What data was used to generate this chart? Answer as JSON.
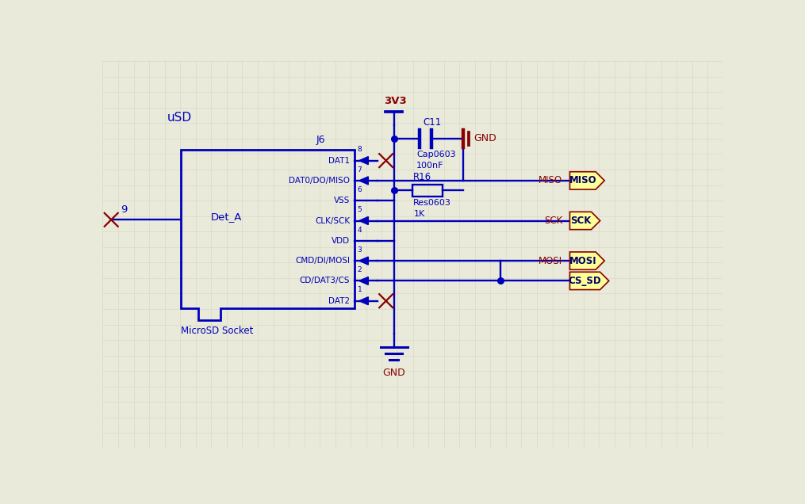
{
  "bg_color": "#eaeada",
  "grid_color": "#d5d5c5",
  "blue": "#0000bb",
  "dark_red": "#880000",
  "yellow_fill": "#ffff99",
  "yellow_edge": "#cccc44",
  "figsize": [
    10.15,
    6.36
  ],
  "dpi": 100,
  "title": "uSD",
  "ic_label": "J6",
  "ic_sublabel": "MicroSD Socket",
  "ic_inner": "Det_A",
  "pin_names": [
    "DAT1",
    "DAT0/DO/MISO",
    "VSS",
    "CLK/SCK",
    "VDD",
    "CMD/DI/MOSI",
    "CD/DAT3/CS",
    "DAT2"
  ],
  "pin_nums": [
    "8",
    "7",
    "6",
    "5",
    "4",
    "3",
    "2",
    "1"
  ],
  "cap_label1": "C11",
  "cap_label2": "Cap0603",
  "cap_label3": "100nF",
  "res_label1": "R16",
  "res_label2": "Res0603",
  "res_label3": "1K",
  "power_3v3": "3V3",
  "gnd1": "GND",
  "gnd2": "GND",
  "net_names": [
    "MISO",
    "SCK",
    "MOSI",
    "CS_SD"
  ],
  "left_pin_num": "9"
}
